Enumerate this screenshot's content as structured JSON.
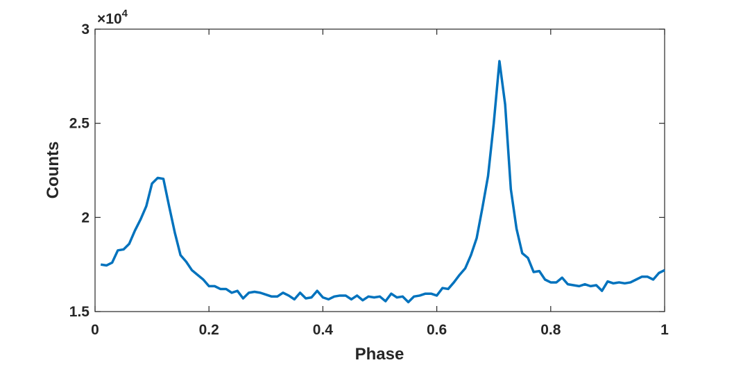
{
  "chart_data": {
    "type": "line",
    "xlabel": "Phase",
    "ylabel": "Counts",
    "y_multiplier": "×10",
    "y_exponent": "4",
    "xlim": [
      0,
      1
    ],
    "xticks": [
      0,
      0.2,
      0.4,
      0.6,
      0.8,
      1
    ],
    "ylim": [
      1.5,
      3
    ],
    "yticks": [
      1.5,
      2,
      2.5,
      3
    ],
    "grid": false,
    "box": true,
    "x": [
      0.01,
      0.02,
      0.03,
      0.04,
      0.05,
      0.06,
      0.07,
      0.08,
      0.09,
      0.1,
      0.11,
      0.12,
      0.13,
      0.14,
      0.15,
      0.16,
      0.17,
      0.18,
      0.19,
      0.2,
      0.21,
      0.22,
      0.23,
      0.24,
      0.25,
      0.26,
      0.27,
      0.28,
      0.29,
      0.3,
      0.31,
      0.32,
      0.33,
      0.34,
      0.35,
      0.36,
      0.37,
      0.38,
      0.39,
      0.4,
      0.41,
      0.42,
      0.43,
      0.44,
      0.45,
      0.46,
      0.47,
      0.48,
      0.49,
      0.5,
      0.51,
      0.52,
      0.53,
      0.54,
      0.55,
      0.56,
      0.57,
      0.58,
      0.59,
      0.6,
      0.61,
      0.62,
      0.63,
      0.64,
      0.65,
      0.66,
      0.67,
      0.68,
      0.69,
      0.7,
      0.71,
      0.72,
      0.73,
      0.74,
      0.75,
      0.76,
      0.77,
      0.78,
      0.79,
      0.8,
      0.81,
      0.82,
      0.83,
      0.84,
      0.85,
      0.86,
      0.87,
      0.88,
      0.89,
      0.9,
      0.91,
      0.92,
      0.93,
      0.94,
      0.95,
      0.96,
      0.97,
      0.98,
      0.99,
      1.0
    ],
    "series": [
      {
        "color": "#0072bd",
        "values": [
          1.75,
          1.745,
          1.76,
          1.825,
          1.83,
          1.86,
          1.93,
          1.99,
          2.06,
          2.18,
          2.21,
          2.205,
          2.06,
          1.92,
          1.8,
          1.765,
          1.72,
          1.695,
          1.67,
          1.635,
          1.635,
          1.62,
          1.62,
          1.6,
          1.61,
          1.57,
          1.6,
          1.605,
          1.6,
          1.59,
          1.58,
          1.58,
          1.6,
          1.585,
          1.565,
          1.6,
          1.57,
          1.575,
          1.61,
          1.575,
          1.565,
          1.58,
          1.585,
          1.585,
          1.565,
          1.585,
          1.56,
          1.58,
          1.575,
          1.58,
          1.555,
          1.595,
          1.575,
          1.58,
          1.55,
          1.58,
          1.585,
          1.595,
          1.595,
          1.585,
          1.625,
          1.62,
          1.655,
          1.695,
          1.73,
          1.8,
          1.89,
          2.05,
          2.22,
          2.5,
          2.83,
          2.6,
          2.15,
          1.94,
          1.81,
          1.785,
          1.71,
          1.715,
          1.67,
          1.655,
          1.655,
          1.68,
          1.645,
          1.64,
          1.635,
          1.645,
          1.635,
          1.64,
          1.61,
          1.66,
          1.65,
          1.655,
          1.65,
          1.655,
          1.67,
          1.685,
          1.685,
          1.67,
          1.705,
          1.72
        ]
      }
    ]
  }
}
